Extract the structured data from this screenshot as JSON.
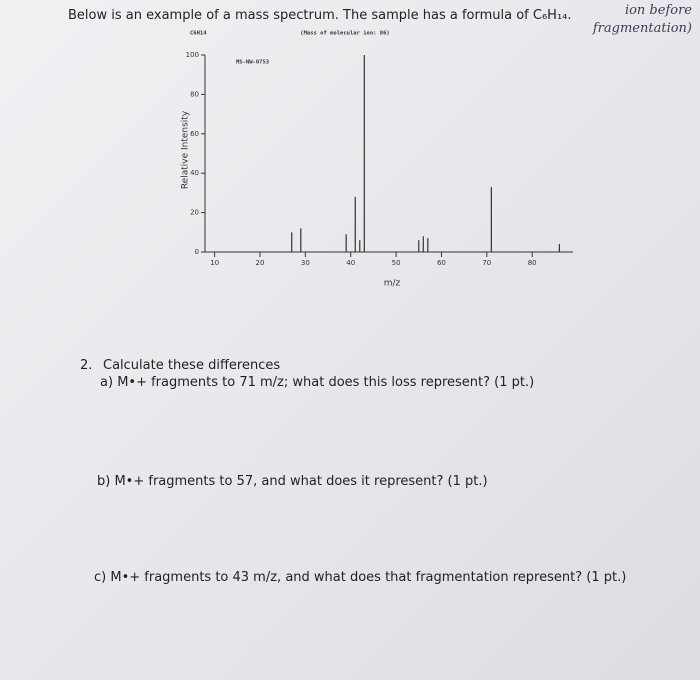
{
  "header": {
    "instruction": "Below is an example of a mass spectrum. The sample has a formula of C₆H₁₄.",
    "note": "ion before fragmentation)"
  },
  "chart_data": {
    "type": "bar",
    "formula_label": "C6H14",
    "subtitle": "(Mass of molecular ion: 86)",
    "annotation": "MS-NW-0753",
    "xlabel": "m/z",
    "ylabel": "Relative Intensity",
    "x": [
      27,
      29,
      39,
      41,
      42,
      43,
      55,
      56,
      57,
      71,
      86
    ],
    "values": [
      10,
      12,
      9,
      28,
      6,
      100,
      6,
      8,
      7,
      33,
      4
    ],
    "color": "#333333",
    "xlim": [
      7,
      89
    ],
    "ylim": [
      0,
      100
    ],
    "xticks": [
      10,
      20,
      30,
      40,
      50,
      60,
      70,
      80
    ],
    "yticks": [
      0,
      20,
      40,
      60,
      80,
      100
    ]
  },
  "questions": {
    "number": "2.",
    "heading": "Calculate these differences",
    "items": [
      {
        "label": "a)",
        "text": "M•+ fragments to 71 m/z; what does this loss represent? (1 pt.)"
      },
      {
        "label": "b)",
        "text": "M•+ fragments to 57, and what does it represent? (1 pt.)"
      },
      {
        "label": "c)",
        "text": "M•+ fragments to 43 m/z, and what does that fragmentation represent? (1 pt.)"
      }
    ]
  }
}
